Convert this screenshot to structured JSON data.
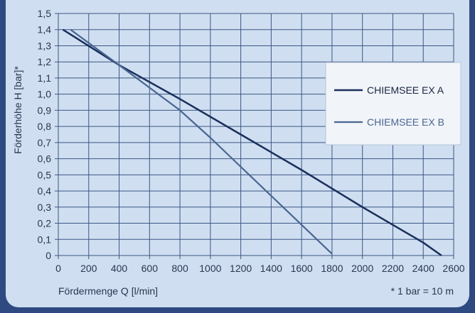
{
  "chart_data": {
    "type": "line",
    "xlabel": "Fördermenge Q [l/min]",
    "ylabel": "Förderhöhe H [bar]*",
    "footnote": "* 1 bar = 10 m",
    "xlim": [
      0,
      2600
    ],
    "ylim": [
      0,
      1.5
    ],
    "x_ticks": [
      0,
      200,
      400,
      600,
      800,
      1000,
      1200,
      1400,
      1600,
      1800,
      2000,
      2200,
      2400,
      2600
    ],
    "y_ticks": [
      0,
      0.1,
      0.2,
      0.3,
      0.4,
      0.5,
      0.6,
      0.7,
      0.8,
      0.9,
      1.0,
      1.1,
      1.2,
      1.3,
      1.4,
      1.5
    ],
    "y_tick_labels": [
      "0",
      "0,1",
      "0,2",
      "0,3",
      "0,4",
      "0,5",
      "0,6",
      "0,7",
      "0,8",
      "0,9",
      "1,0",
      "1,1",
      "1,2",
      "1,3",
      "1,4",
      "1,5"
    ],
    "grid": true,
    "legend_position": "right",
    "series": [
      {
        "name": "CHIEMSEE EX A",
        "color": "#1a2f5c",
        "points": [
          [
            30,
            1.4
          ],
          [
            400,
            1.18
          ],
          [
            800,
            0.97
          ],
          [
            1200,
            0.75
          ],
          [
            1600,
            0.53
          ],
          [
            2000,
            0.3
          ],
          [
            2400,
            0.08
          ],
          [
            2520,
            0.0
          ]
        ]
      },
      {
        "name": "CHIEMSEE EX B",
        "color": "#4a6591",
        "points": [
          [
            80,
            1.4
          ],
          [
            400,
            1.18
          ],
          [
            800,
            0.9
          ],
          [
            1000,
            0.73
          ],
          [
            1200,
            0.55
          ],
          [
            1400,
            0.37
          ],
          [
            1600,
            0.19
          ],
          [
            1800,
            0.01
          ]
        ]
      }
    ]
  }
}
